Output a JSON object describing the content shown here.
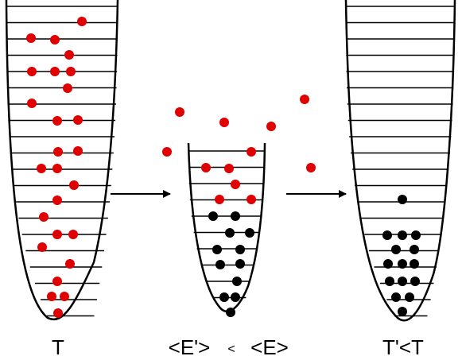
{
  "colors": {
    "hot": "#e00000",
    "cold": "#000000",
    "line": "#000000",
    "background": "#ffffff"
  },
  "labels": {
    "left": "T",
    "middle_a": "<E'>",
    "middle_op": "<",
    "middle_b": "<E>",
    "right": "T'<T"
  }
}
